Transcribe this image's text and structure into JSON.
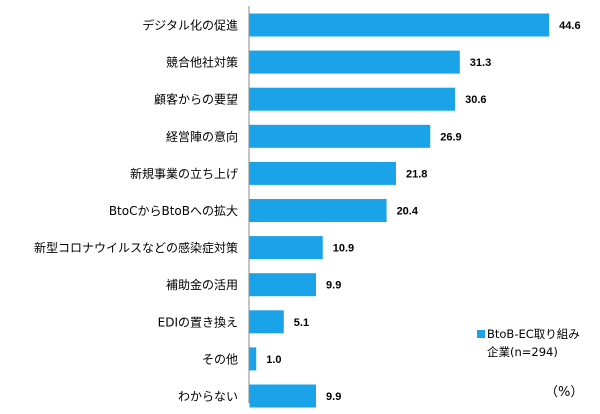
{
  "chart_data": {
    "type": "bar",
    "orientation": "horizontal",
    "categories": [
      "デジタル化の促進",
      "競合他社対策",
      "顧客からの要望",
      "経営陣の意向",
      "新規事業の立ち上げ",
      "BtoCからBtoBへの拡大",
      "新型コロナウイルスなどの感染症対策",
      "補助金の活用",
      "EDIの置き換え",
      "その他",
      "わからない"
    ],
    "series": [
      {
        "name": "BtoB-EC取り組み企業(n=294)",
        "legend_lines": [
          "BtoB-EC取り組み",
          "企業(n=294)"
        ],
        "color": "#1aa3e8",
        "values": [
          44.6,
          31.3,
          30.6,
          26.9,
          21.8,
          20.4,
          10.9,
          9.9,
          5.1,
          1.0,
          9.9
        ],
        "value_labels": [
          "44.6",
          "31.3",
          "30.6",
          "26.9",
          "21.8",
          "20.4",
          "10.9",
          "9.9",
          "5.1",
          "1.0",
          "9.9"
        ]
      }
    ],
    "unit_label": "（%）",
    "xlim": [
      0,
      48
    ],
    "grid": false,
    "axis_color": "#888888",
    "legend_position": "bottom-right"
  }
}
